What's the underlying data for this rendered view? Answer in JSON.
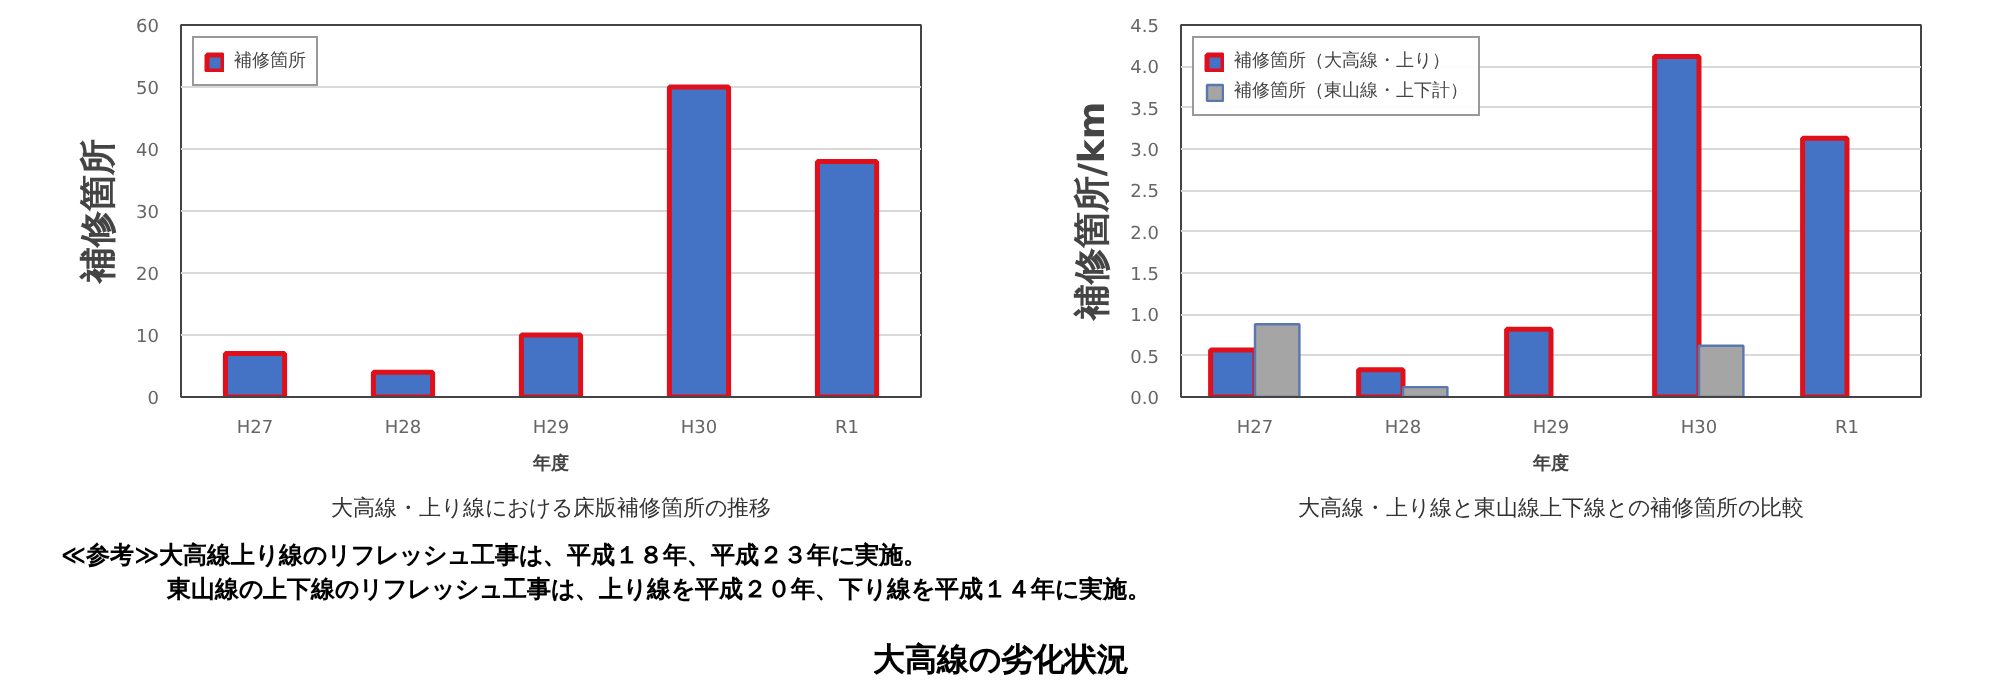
{
  "chart_data": [
    {
      "type": "bar",
      "subtitle": "大高線・上り線における床版補修箇所の推移",
      "xlabel": "年度",
      "ylabel": "補修箇所",
      "categories": [
        "H27",
        "H28",
        "H29",
        "H30",
        "R1"
      ],
      "series": [
        {
          "name": "補修箇所",
          "color": "#4472c4",
          "values": [
            7,
            4,
            10,
            50,
            38
          ]
        }
      ],
      "ylim": [
        0,
        60
      ],
      "yticks": [
        0,
        10,
        20,
        30,
        40,
        50,
        60
      ],
      "grid": "y",
      "legend": "top left"
    },
    {
      "type": "bar",
      "subtitle": "大高線・上り線と東山線上下線との補修箇所の比較",
      "xlabel": "年度",
      "ylabel": "補修箇所/km",
      "categories": [
        "H27",
        "H28",
        "H29",
        "H30",
        "R1"
      ],
      "series": [
        {
          "name": "補修箇所（大高線・上り）",
          "color": "#4472c4",
          "values": [
            0.57,
            0.33,
            0.82,
            4.12,
            3.13
          ]
        },
        {
          "name": "補修箇所（東山線・上下計）",
          "color": "#a5a5a5",
          "values": [
            0.88,
            0.12,
            null,
            0.62,
            null
          ]
        }
      ],
      "ylim": [
        0,
        4.5
      ],
      "yticks": [
        {
          "value": 0,
          "label": "0.0"
        },
        {
          "value": 0.5,
          "label": "0.5"
        },
        {
          "value": 1,
          "label": "1.0"
        },
        {
          "value": 1.5,
          "label": "1.5"
        },
        {
          "value": 2,
          "label": "2.0"
        },
        {
          "value": 2.5,
          "label": "2.5"
        },
        {
          "value": 3,
          "label": "3.0"
        },
        {
          "value": 3.5,
          "label": "3.5"
        },
        {
          "value": 4,
          "label": "4.0"
        },
        {
          "value": 4.5,
          "label": "4.5"
        }
      ],
      "grid": "y",
      "legend": "top left"
    },
    {
      "type": "other",
      "title": "大高線の劣化状況",
      "annotations": [
        "≪参考≫大高線上り線のリフレッシュ工事は、平成１８年、平成２３年に実施。",
        "東山線の上下線のリフレッシュ工事は、上り線を平成２０年、下り線を平成１４年に実施。"
      ]
    }
  ]
}
